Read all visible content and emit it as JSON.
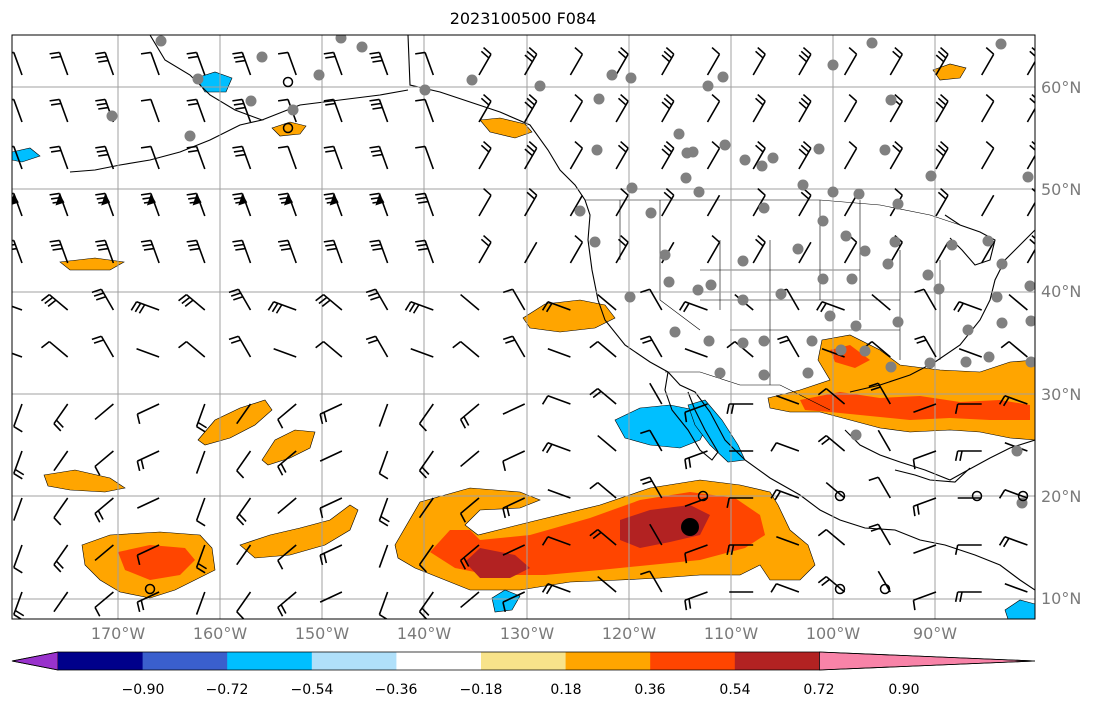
{
  "title": "2023100500 F084",
  "map": {
    "lat_labels": [
      "60°N",
      "50°N",
      "40°N",
      "30°N",
      "20°N",
      "10°N"
    ],
    "lon_labels": [
      "170°W",
      "160°W",
      "150°W",
      "140°W",
      "130°W",
      "120°W",
      "110°W",
      "100°W",
      "90°W"
    ]
  },
  "colorbar": {
    "colors": [
      "#9932cc",
      "#00008b",
      "#3a5fcd",
      "#00bfff",
      "#b0e0fa",
      "#ffffff",
      "#f8e38a",
      "#ffa500",
      "#ff4500",
      "#b22222",
      "#f883a8"
    ],
    "labels": [
      "−0.90",
      "−0.72",
      "−0.54",
      "−0.36",
      "−0.18",
      "0.18",
      "0.36",
      "0.54",
      "0.72",
      "0.90"
    ]
  },
  "accent_colors": {
    "orange": "#ffa500",
    "red_orange": "#ff4500",
    "dark_red": "#b22222",
    "blue": "#00bfff",
    "grid": "#a0a0a0",
    "station": "#808080"
  }
}
